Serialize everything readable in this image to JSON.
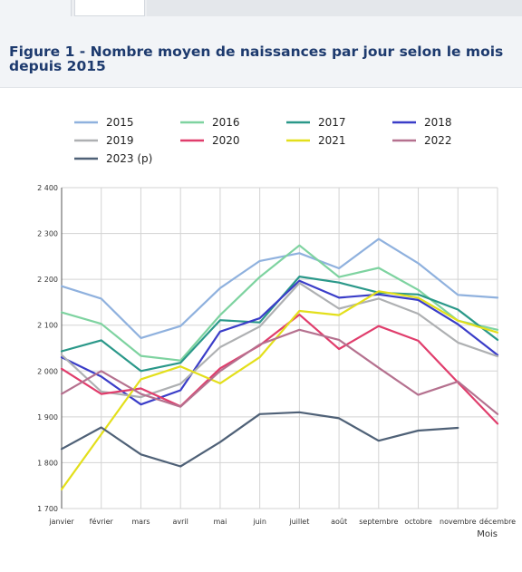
{
  "page": {
    "title": "Figure 1 - Nombre moyen de naissances par jour selon le mois depuis 2015"
  },
  "chart_data": {
    "type": "line",
    "title": "Figure 1 - Nombre moyen de naissances par jour selon le mois depuis 2015",
    "xlabel": "Mois",
    "ylabel": "",
    "categories": [
      "janvier",
      "février",
      "mars",
      "avril",
      "mai",
      "juin",
      "juillet",
      "août",
      "septembre",
      "octobre",
      "novembre",
      "décembre"
    ],
    "ylim": [
      1700,
      2400
    ],
    "yticks": [
      1700,
      1800,
      1900,
      2000,
      2100,
      2200,
      2300,
      2400
    ],
    "ytick_labels": [
      "1 700",
      "1 800",
      "1 900",
      "2 000",
      "2 100",
      "2 200",
      "2 300",
      "2 400"
    ],
    "grid": true,
    "legend_position": "top",
    "series": [
      {
        "name": "2015",
        "color": "#8fb1de",
        "values": [
          2185,
          2158,
          2072,
          2098,
          2181,
          2240,
          2257,
          2224,
          2288,
          2235,
          2166,
          2160
        ]
      },
      {
        "name": "2016",
        "color": "#7ed3a0",
        "values": [
          2128,
          2103,
          2033,
          2023,
          2122,
          2205,
          2274,
          2205,
          2225,
          2177,
          2110,
          2090
        ]
      },
      {
        "name": "2017",
        "color": "#2a9889",
        "values": [
          2043,
          2067,
          2000,
          2018,
          2111,
          2106,
          2206,
          2193,
          2171,
          2167,
          2134,
          2068
        ]
      },
      {
        "name": "2018",
        "color": "#3a3dc8",
        "values": [
          2030,
          1988,
          1927,
          1958,
          2086,
          2115,
          2197,
          2160,
          2167,
          2155,
          2102,
          2035
        ]
      },
      {
        "name": "2019",
        "color": "#aeb0b2",
        "values": [
          2035,
          1955,
          1943,
          1972,
          2052,
          2097,
          2192,
          2136,
          2158,
          2125,
          2062,
          2032
        ]
      },
      {
        "name": "2020",
        "color": "#e03d6c",
        "values": [
          2005,
          1950,
          1962,
          1923,
          2006,
          2056,
          2123,
          2048,
          2098,
          2066,
          1975,
          1885
        ]
      },
      {
        "name": "2021",
        "color": "#e3df1b",
        "values": [
          1742,
          1862,
          1982,
          2010,
          1973,
          2030,
          2131,
          2122,
          2174,
          2160,
          2110,
          2084
        ]
      },
      {
        "name": "2022",
        "color": "#b5718f",
        "values": [
          1950,
          2000,
          1950,
          1922,
          2000,
          2058,
          2090,
          2068,
          2007,
          1948,
          1977,
          1906
        ]
      },
      {
        "name": "2023 (p)",
        "color": "#4f6177",
        "values": [
          1830,
          1877,
          1818,
          1792,
          1845,
          1906,
          1910,
          1897,
          1848,
          1870,
          1876,
          null
        ]
      }
    ]
  }
}
